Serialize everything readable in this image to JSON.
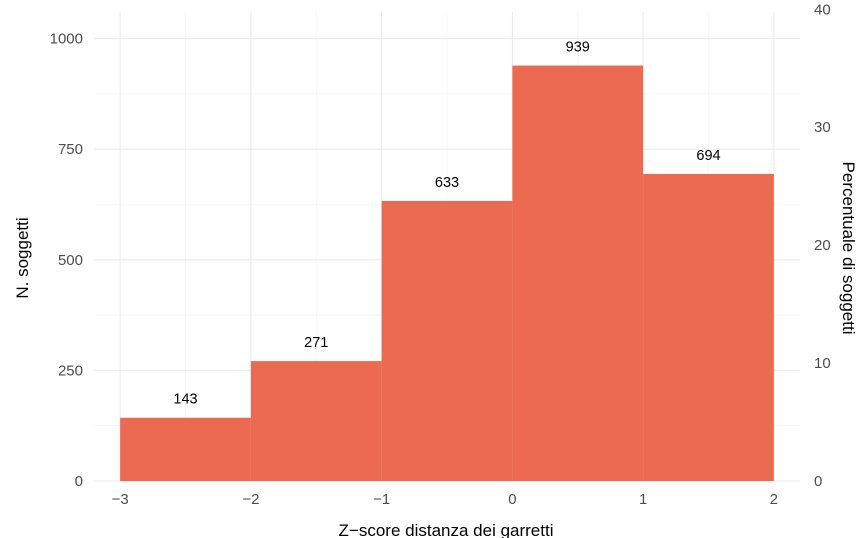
{
  "chart_data": {
    "type": "bar",
    "title": "",
    "bins": [
      {
        "from": -3,
        "to": -2,
        "count": 143,
        "label": "143"
      },
      {
        "from": -2,
        "to": -1,
        "count": 271,
        "label": "271"
      },
      {
        "from": -1,
        "to": 0,
        "count": 633,
        "label": "633"
      },
      {
        "from": 0,
        "to": 1,
        "count": 939,
        "label": "939"
      },
      {
        "from": 1,
        "to": 2,
        "count": 694,
        "label": "694"
      }
    ],
    "xlabel": "Z−score distanza dei garretti",
    "ylabel": "N. soggetti",
    "y2label": "Percentuale di soggetti",
    "xlim": [
      -3.2,
      2.2
    ],
    "ylim": [
      0,
      1060
    ],
    "y2_per_y": 0.03752,
    "x_ticks": [
      {
        "value": -3,
        "label": "−3"
      },
      {
        "value": -2,
        "label": "−2"
      },
      {
        "value": -1,
        "label": "−1"
      },
      {
        "value": 0,
        "label": "0"
      },
      {
        "value": 1,
        "label": "1"
      },
      {
        "value": 2,
        "label": "2"
      }
    ],
    "y_ticks": [
      {
        "value": 0,
        "label": "0"
      },
      {
        "value": 250,
        "label": "250"
      },
      {
        "value": 500,
        "label": "500"
      },
      {
        "value": 750,
        "label": "750"
      },
      {
        "value": 1000,
        "label": "1000"
      }
    ],
    "y2_ticks": [
      {
        "value": 0,
        "label": "0"
      },
      {
        "value": 10,
        "label": "10"
      },
      {
        "value": 20,
        "label": "20"
      },
      {
        "value": 30,
        "label": "30"
      },
      {
        "value": 40,
        "label": "40"
      }
    ],
    "bar_color": "#ec6a51",
    "grid": true,
    "legend": "none"
  }
}
